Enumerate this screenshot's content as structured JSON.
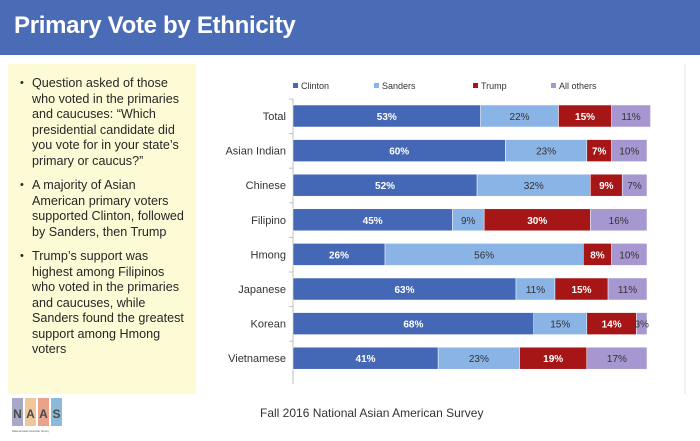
{
  "header": {
    "title": "Primary Vote by Ethnicity"
  },
  "sidebar": {
    "bullets": [
      "Question asked of those who voted in the primaries and caucuses: “Which presidential candidate did you vote for in your state’s primary or caucus?”",
      "A majority of Asian American primary voters supported Clinton, followed by Sanders, then Trump",
      "Trump’s support was highest among Filipinos who voted in the primaries and caucuses, while Sanders found the greatest support among Hmong voters"
    ]
  },
  "chart_data": {
    "type": "bar",
    "orientation": "horizontal",
    "stacked": true,
    "categories": [
      "Total",
      "Asian Indian",
      "Chinese",
      "Filipino",
      "Hmong",
      "Japanese",
      "Korean",
      "Vietnamese"
    ],
    "series": [
      {
        "name": "Clinton",
        "color": "#4468b5",
        "values": [
          53,
          60,
          52,
          45,
          26,
          63,
          68,
          41
        ]
      },
      {
        "name": "Sanders",
        "color": "#8ab3e6",
        "values": [
          22,
          23,
          32,
          9,
          56,
          11,
          15,
          23
        ]
      },
      {
        "name": "Trump",
        "color": "#a61616",
        "values": [
          15,
          7,
          9,
          30,
          8,
          15,
          14,
          19
        ]
      },
      {
        "name": "All others",
        "color": "#a697d1",
        "values": [
          11,
          10,
          7,
          16,
          10,
          11,
          3,
          17
        ]
      }
    ],
    "legend": "top",
    "xlim": [
      0,
      100
    ],
    "value_suffix": "%"
  },
  "footer": {
    "source": "Fall 2016 National Asian American Survey"
  },
  "logo": {
    "letters": [
      "N",
      "A",
      "A",
      "S"
    ],
    "colors": [
      "#a7a9c7",
      "#f0c79a",
      "#e9a38a",
      "#8dbad8"
    ],
    "caption": "National Asian American Survey"
  }
}
